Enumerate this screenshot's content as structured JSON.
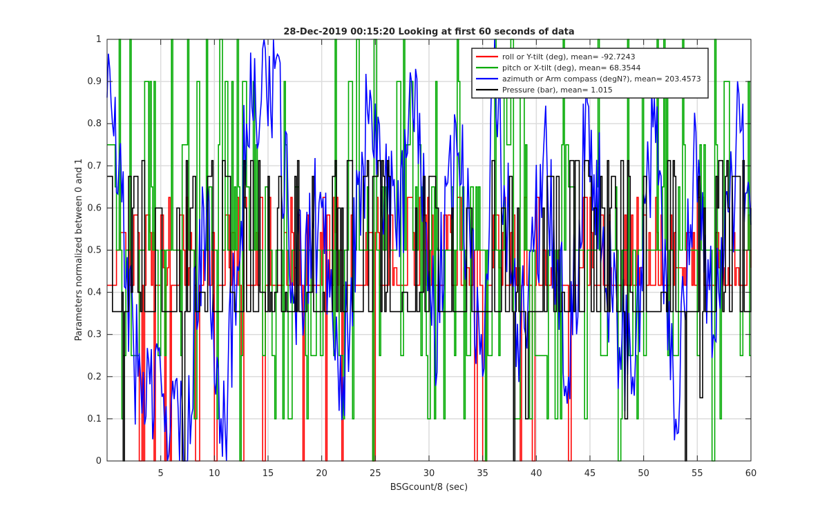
{
  "chart_data": {
    "type": "line",
    "title": "28-Dec-2019 00:15:20 Looking at first 60 seconds of data",
    "xlabel": "BSGcount/8 (sec)",
    "ylabel": "Parameters normalized between 0 and 1",
    "xlim": [
      0,
      60
    ],
    "ylim": [
      0,
      1
    ],
    "xticks": [
      5,
      10,
      15,
      20,
      25,
      30,
      35,
      40,
      45,
      50,
      55,
      60
    ],
    "yticks": [
      0,
      0.1,
      0.2,
      0.3,
      0.4,
      0.5,
      0.6,
      0.7,
      0.8,
      0.9,
      1
    ],
    "grid": true,
    "legend_position": "top-right",
    "series": [
      {
        "name": "roll or Y-tilt (deg), mean= -92.7243",
        "color": "#ff0000",
        "sample_interval": 0.125,
        "levels": [
          0,
          0.4167,
          0.4583,
          0.5,
          0.5417,
          0.5833,
          0.625
        ],
        "baseline": 0.4167,
        "segments": [
          {
            "x": 0,
            "y": 0.4167
          },
          {
            "x": 2.5,
            "y": 0.5833
          },
          {
            "x": 3.0,
            "y": 0.0
          },
          {
            "x": 3.6,
            "y": 0.5833
          },
          {
            "x": 5.0,
            "y": 0.5833
          },
          {
            "x": 5.3,
            "y": 0.0
          },
          {
            "x": 6.0,
            "y": 0.4167
          },
          {
            "x": 8.2,
            "y": 0.0
          },
          {
            "x": 9.0,
            "y": 0.5
          },
          {
            "x": 10.0,
            "y": 0.0
          },
          {
            "x": 11.0,
            "y": 0.5833
          },
          {
            "x": 12.5,
            "y": 0.0
          },
          {
            "x": 14.5,
            "y": 0.0
          },
          {
            "x": 15.5,
            "y": 0.4167
          },
          {
            "x": 19.0,
            "y": 0.4167
          },
          {
            "x": 20.3,
            "y": 0.0
          },
          {
            "x": 21.8,
            "y": 0.0
          },
          {
            "x": 23.0,
            "y": 0.4167
          },
          {
            "x": 24.7,
            "y": 0.0
          },
          {
            "x": 26.0,
            "y": 0.4167
          },
          {
            "x": 33.5,
            "y": 0.4583
          },
          {
            "x": 34.2,
            "y": 0.0
          },
          {
            "x": 35.0,
            "y": 0.0
          },
          {
            "x": 36.0,
            "y": 0.5833
          },
          {
            "x": 39.6,
            "y": 0.0
          },
          {
            "x": 41.0,
            "y": 0.4167
          },
          {
            "x": 43.0,
            "y": 0.0
          },
          {
            "x": 44.0,
            "y": 0.4583
          },
          {
            "x": 46.0,
            "y": 0.5833
          },
          {
            "x": 50.0,
            "y": 0.5833
          },
          {
            "x": 52.0,
            "y": 0.4167
          },
          {
            "x": 53.0,
            "y": 0.4583
          },
          {
            "x": 55.0,
            "y": 0.625
          },
          {
            "x": 57.0,
            "y": 0.4583
          },
          {
            "x": 60.0,
            "y": 0.4583
          }
        ]
      },
      {
        "name": "pitch or X-tilt (deg), mean= 68.3544",
        "color": "#00aa00",
        "sample_interval": 0.125,
        "levels": [
          0,
          0.1,
          0.25,
          0.5,
          0.65,
          0.75,
          0.9,
          1
        ],
        "baseline": 0.5,
        "segments": [
          {
            "x": 0,
            "y": 0.75
          },
          {
            "x": 1.5,
            "y": 0.25
          },
          {
            "x": 3.0,
            "y": 0.5
          },
          {
            "x": 5.0,
            "y": 0.5
          },
          {
            "x": 7.0,
            "y": 0.75
          },
          {
            "x": 8.3,
            "y": 0.9
          },
          {
            "x": 9.5,
            "y": 0.65
          },
          {
            "x": 11.0,
            "y": 0.9
          },
          {
            "x": 13.0,
            "y": 0.65
          },
          {
            "x": 15.0,
            "y": 0.5
          },
          {
            "x": 17.5,
            "y": 0.65
          },
          {
            "x": 19.0,
            "y": 0.25
          },
          {
            "x": 20.5,
            "y": 0.5
          },
          {
            "x": 22.5,
            "y": 0.9
          },
          {
            "x": 24.8,
            "y": 1.0
          },
          {
            "x": 26.0,
            "y": 0.65
          },
          {
            "x": 27.0,
            "y": 0.9
          },
          {
            "x": 29.0,
            "y": 0.75
          },
          {
            "x": 31.0,
            "y": 0.5
          },
          {
            "x": 33.5,
            "y": 0.25
          },
          {
            "x": 35.0,
            "y": 0.5
          },
          {
            "x": 37.0,
            "y": 0.9
          },
          {
            "x": 38.5,
            "y": 0.9
          },
          {
            "x": 40.0,
            "y": 0.25
          },
          {
            "x": 42.0,
            "y": 0.5
          },
          {
            "x": 44.5,
            "y": 0.1
          },
          {
            "x": 46.0,
            "y": 0.25
          },
          {
            "x": 48.0,
            "y": 0.5
          },
          {
            "x": 50.0,
            "y": 0.25
          },
          {
            "x": 53.0,
            "y": 0.25
          },
          {
            "x": 55.0,
            "y": 0.25
          },
          {
            "x": 56.3,
            "y": 0.0
          },
          {
            "x": 57.5,
            "y": 0.9
          },
          {
            "x": 59.0,
            "y": 0.25
          },
          {
            "x": 60.0,
            "y": 0.25
          }
        ]
      },
      {
        "name": "azimuth or Arm compass (degN?), mean= 203.4573",
        "color": "#0000ff",
        "sample_interval": 0.125,
        "baseline": 0.5,
        "peaks": [
          {
            "x": 0.5,
            "y": 0.8
          },
          {
            "x": 2.8,
            "y": 0.2
          },
          {
            "x": 5.5,
            "y": 0.13
          },
          {
            "x": 7.2,
            "y": 0.0
          },
          {
            "x": 9.0,
            "y": 0.6
          },
          {
            "x": 11.0,
            "y": 0.08
          },
          {
            "x": 13.0,
            "y": 0.8
          },
          {
            "x": 15.6,
            "y": 0.93
          },
          {
            "x": 17.5,
            "y": 0.4
          },
          {
            "x": 20.0,
            "y": 0.6
          },
          {
            "x": 22.0,
            "y": 0.2
          },
          {
            "x": 24.5,
            "y": 0.88
          },
          {
            "x": 27.0,
            "y": 0.5
          },
          {
            "x": 28.7,
            "y": 0.93
          },
          {
            "x": 30.5,
            "y": 0.3
          },
          {
            "x": 32.5,
            "y": 0.8
          },
          {
            "x": 35.0,
            "y": 0.2
          },
          {
            "x": 36.0,
            "y": 0.9
          },
          {
            "x": 38.5,
            "y": 0.3
          },
          {
            "x": 41.0,
            "y": 0.7
          },
          {
            "x": 43.0,
            "y": 0.2
          },
          {
            "x": 44.8,
            "y": 0.84
          },
          {
            "x": 47.0,
            "y": 0.4
          },
          {
            "x": 49.0,
            "y": 0.2
          },
          {
            "x": 51.0,
            "y": 0.86
          },
          {
            "x": 53.0,
            "y": 0.1
          },
          {
            "x": 54.8,
            "y": 0.78
          },
          {
            "x": 56.5,
            "y": 0.3
          },
          {
            "x": 59.0,
            "y": 0.78
          },
          {
            "x": 60.0,
            "y": 0.56
          }
        ]
      },
      {
        "name": "Pressure (bar), mean= 1.015",
        "color": "#000000",
        "sample_interval": 0.125,
        "levels": [
          0,
          0.3542,
          0.4,
          0.6,
          0.675,
          0.7125
        ],
        "baseline": 0.3542,
        "segments": [
          {
            "x": 0,
            "y": 0.675
          },
          {
            "x": 1.4,
            "y": 0.0
          },
          {
            "x": 2.5,
            "y": 0.675
          },
          {
            "x": 4.0,
            "y": 0.3542
          },
          {
            "x": 6.5,
            "y": 0.6
          },
          {
            "x": 7.0,
            "y": 0.0
          },
          {
            "x": 8.0,
            "y": 0.675
          },
          {
            "x": 11.0,
            "y": 0.675
          },
          {
            "x": 13.0,
            "y": 0.3542
          },
          {
            "x": 16.0,
            "y": 0.675
          },
          {
            "x": 18.0,
            "y": 0.3542
          },
          {
            "x": 21.0,
            "y": 0.675
          },
          {
            "x": 24.0,
            "y": 0.675
          },
          {
            "x": 27.0,
            "y": 0.3542
          },
          {
            "x": 30.0,
            "y": 0.675
          },
          {
            "x": 34.0,
            "y": 0.3542
          },
          {
            "x": 37.5,
            "y": 0.675
          },
          {
            "x": 39.0,
            "y": 0.1
          },
          {
            "x": 41.0,
            "y": 0.675
          },
          {
            "x": 44.0,
            "y": 0.3542
          },
          {
            "x": 47.0,
            "y": 0.675
          },
          {
            "x": 48.2,
            "y": 0.1
          },
          {
            "x": 50.0,
            "y": 0.675
          },
          {
            "x": 53.0,
            "y": 0.3542
          },
          {
            "x": 55.2,
            "y": 0.15
          },
          {
            "x": 57.0,
            "y": 0.7125
          },
          {
            "x": 59.0,
            "y": 0.3542
          },
          {
            "x": 60.0,
            "y": 0.6
          }
        ]
      }
    ]
  }
}
